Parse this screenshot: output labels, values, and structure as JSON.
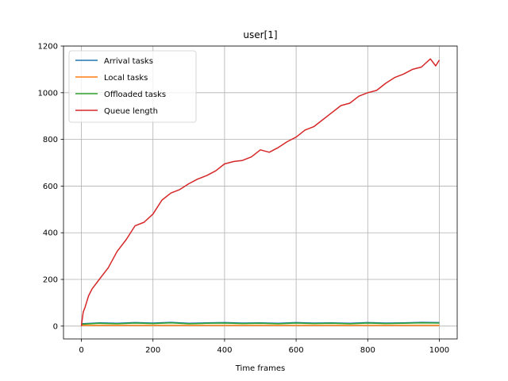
{
  "chart_data": {
    "type": "line",
    "title": "user[1]",
    "xlabel": "Time frames",
    "ylabel": "",
    "xlim": [
      -50,
      1050
    ],
    "ylim": [
      -55,
      1200
    ],
    "xticks": [
      0,
      200,
      400,
      600,
      800,
      1000
    ],
    "yticks": [
      0,
      200,
      400,
      600,
      800,
      1000,
      1200
    ],
    "grid": true,
    "legend": "upper left",
    "series": [
      {
        "name": "Arrival tasks",
        "color": "#1f77b4",
        "x": [
          0,
          50,
          100,
          150,
          200,
          250,
          300,
          350,
          400,
          450,
          500,
          550,
          600,
          650,
          700,
          750,
          800,
          850,
          900,
          950,
          1000
        ],
        "values": [
          10,
          14,
          12,
          15,
          13,
          16,
          12,
          14,
          15,
          13,
          14,
          12,
          15,
          13,
          14,
          12,
          15,
          13,
          14,
          16,
          15
        ]
      },
      {
        "name": "Local tasks",
        "color": "#ff7f0e",
        "x": [
          0,
          50,
          100,
          150,
          200,
          250,
          300,
          350,
          400,
          450,
          500,
          550,
          600,
          650,
          700,
          750,
          800,
          850,
          900,
          950,
          1000
        ],
        "values": [
          3,
          3,
          3,
          3,
          3,
          3,
          3,
          3,
          3,
          3,
          3,
          3,
          3,
          3,
          3,
          3,
          3,
          3,
          3,
          3,
          3
        ]
      },
      {
        "name": "Offloaded tasks",
        "color": "#2ca02c",
        "x": [
          0,
          50,
          100,
          150,
          200,
          250,
          300,
          350,
          400,
          450,
          500,
          550,
          600,
          650,
          700,
          750,
          800,
          850,
          900,
          950,
          1000
        ],
        "values": [
          8,
          12,
          10,
          13,
          11,
          14,
          10,
          12,
          13,
          11,
          12,
          10,
          13,
          11,
          12,
          10,
          13,
          11,
          12,
          14,
          13
        ]
      },
      {
        "name": "Queue length",
        "color": "#d62728",
        "x": [
          0,
          5,
          10,
          20,
          30,
          50,
          75,
          100,
          125,
          150,
          175,
          200,
          225,
          250,
          275,
          300,
          325,
          350,
          375,
          400,
          425,
          450,
          475,
          500,
          525,
          550,
          575,
          600,
          625,
          650,
          675,
          700,
          725,
          750,
          775,
          800,
          825,
          850,
          875,
          900,
          925,
          950,
          975,
          990,
          1000
        ],
        "values": [
          0,
          60,
          80,
          130,
          160,
          200,
          250,
          320,
          370,
          430,
          445,
          480,
          540,
          570,
          585,
          610,
          630,
          645,
          665,
          695,
          705,
          710,
          725,
          755,
          745,
          765,
          790,
          810,
          840,
          855,
          885,
          915,
          945,
          955,
          985,
          1000,
          1010,
          1040,
          1065,
          1080,
          1100,
          1110,
          1145,
          1115,
          1140
        ]
      }
    ]
  }
}
